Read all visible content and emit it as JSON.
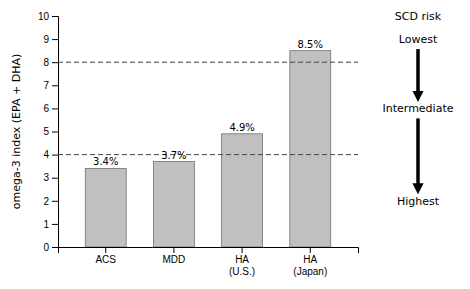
{
  "chart_data": {
    "type": "bar",
    "categories": [
      "ACS",
      "MDD",
      "HA\n(U.S.)",
      "HA\n(Japan)"
    ],
    "values": [
      3.4,
      3.7,
      4.9,
      8.5
    ],
    "value_labels": [
      "3.4%",
      "3.7%",
      "4.9%",
      "8.5%"
    ],
    "data_labels": true,
    "color": "#c0c0c0",
    "ylabel": "omega-3 index (EPA + DHA)",
    "ylim": [
      0,
      10
    ],
    "yticks": [
      0,
      1,
      2,
      3,
      4,
      5,
      6,
      7,
      8,
      9,
      10
    ],
    "grid": false,
    "hlines": [
      4.0,
      8.0
    ],
    "annotation_title": "SCD risk",
    "annotations": [
      "Lowest",
      "Intermediate",
      "Highest"
    ]
  }
}
